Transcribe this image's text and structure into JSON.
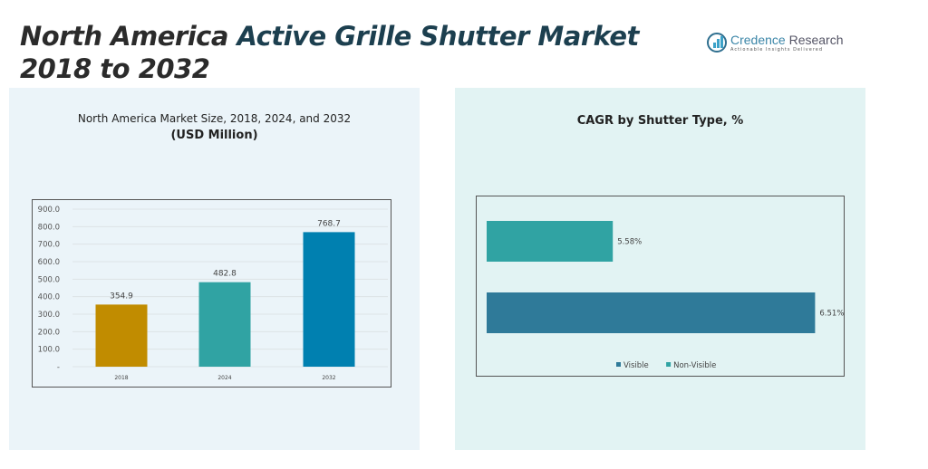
{
  "header": {
    "title_part1": "North America ",
    "title_part2": "Active Grille Shutter Market",
    "title_part3": " 2018 to 2032",
    "logo_name": "Credence",
    "logo_name2": " Research",
    "logo_tagline": "Actionable Insights Delivered"
  },
  "chart_data": [
    {
      "type": "bar",
      "title": "North America Market Size, 2018, 2024, and 2032",
      "subtitle": "(USD Million)",
      "categories": [
        "2018",
        "2024",
        "2032"
      ],
      "values": [
        354.9,
        482.8,
        768.7
      ],
      "data_labels": [
        "354.9",
        "482.8",
        "768.7"
      ],
      "colors": [
        "#c18c00",
        "#30a3a3",
        "#0080b0"
      ],
      "ylim": [
        0,
        900
      ],
      "yticks": [
        "-",
        "100.0",
        "200.0",
        "300.0",
        "400.0",
        "500.0",
        "600.0",
        "700.0",
        "800.0",
        "900.0"
      ],
      "grid": true
    },
    {
      "type": "bar",
      "orientation": "horizontal",
      "title": "CAGR by Shutter Type, %",
      "series": [
        {
          "name": "Non-Visible",
          "value": 5.58,
          "label": "5.58%",
          "color": "#30a3a3"
        },
        {
          "name": "Visible",
          "value": 6.51,
          "label": "6.51%",
          "color": "#2f7a99"
        }
      ],
      "legend_entries": [
        "Visible",
        "Non-Visible"
      ],
      "legend_placement": "bottom",
      "xlim": [
        5.0,
        6.6
      ],
      "grid": false
    }
  ]
}
